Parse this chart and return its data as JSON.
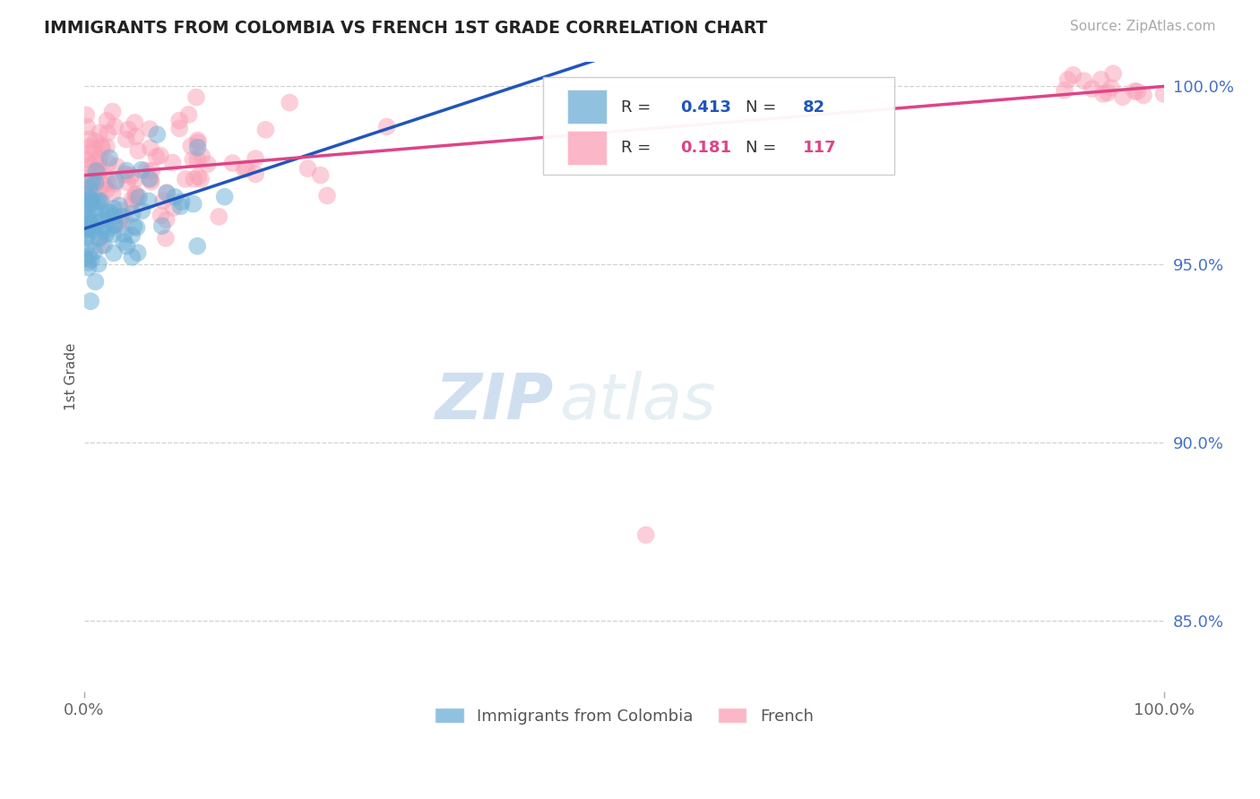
{
  "title": "IMMIGRANTS FROM COLOMBIA VS FRENCH 1ST GRADE CORRELATION CHART",
  "source_text": "Source: ZipAtlas.com",
  "ylabel": "1st Grade",
  "xlim": [
    0.0,
    1.0
  ],
  "ylim": [
    0.83,
    1.007
  ],
  "ytick_vals": [
    0.85,
    0.9,
    0.95,
    1.0
  ],
  "ytick_labels": [
    "85.0%",
    "90.0%",
    "95.0%",
    "100.0%"
  ],
  "xtick_vals": [
    0.0,
    1.0
  ],
  "xtick_labels": [
    "0.0%",
    "100.0%"
  ],
  "R_colombia": 0.413,
  "N_colombia": 82,
  "R_french": 0.181,
  "N_french": 117,
  "colombia_color": "#6baed6",
  "french_color": "#fa9fb5",
  "colombia_line_color": "#2255bb",
  "french_line_color": "#dd4488",
  "right_label_color": "#4472c4",
  "legend_entries": [
    {
      "label": "Immigrants from Colombia",
      "color": "#6baed6"
    },
    {
      "label": "French",
      "color": "#fa9fb5"
    }
  ],
  "background_color": "#ffffff",
  "grid_color": "#cccccc",
  "watermark_text": "ZIP",
  "watermark_text2": "atlas",
  "colombia_seed": 42,
  "french_seed": 99
}
